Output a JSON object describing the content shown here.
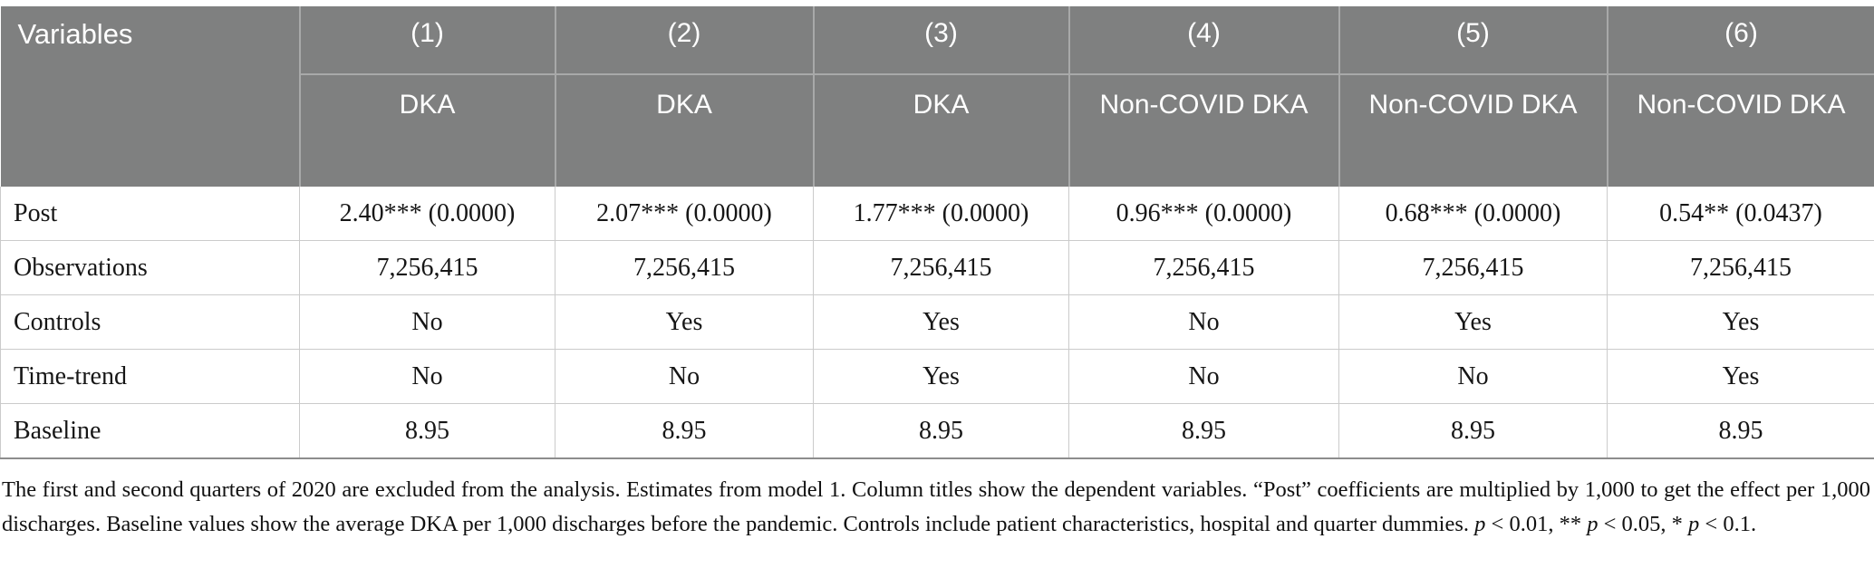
{
  "table": {
    "header": {
      "variables_label": "Variables",
      "columns": [
        {
          "number": "(1)",
          "dep_var": "DKA"
        },
        {
          "number": "(2)",
          "dep_var": "DKA"
        },
        {
          "number": "(3)",
          "dep_var": "DKA"
        },
        {
          "number": "(4)",
          "dep_var": "Non-COVID DKA"
        },
        {
          "number": "(5)",
          "dep_var": "Non-COVID DKA"
        },
        {
          "number": "(6)",
          "dep_var": "Non-COVID DKA"
        }
      ]
    },
    "rows": [
      {
        "label": "Post",
        "values": [
          "2.40*** (0.0000)",
          "2.07*** (0.0000)",
          "1.77*** (0.0000)",
          "0.96*** (0.0000)",
          "0.68*** (0.0000)",
          "0.54** (0.0437)"
        ]
      },
      {
        "label": "Observations",
        "values": [
          "7,256,415",
          "7,256,415",
          "7,256,415",
          "7,256,415",
          "7,256,415",
          "7,256,415"
        ]
      },
      {
        "label": "Controls",
        "values": [
          "No",
          "Yes",
          "Yes",
          "No",
          "Yes",
          "Yes"
        ]
      },
      {
        "label": "Time-trend",
        "values": [
          "No",
          "No",
          "Yes",
          "No",
          "No",
          "Yes"
        ]
      },
      {
        "label": "Baseline",
        "values": [
          "8.95",
          "8.95",
          "8.95",
          "8.95",
          "8.95",
          "8.95"
        ]
      }
    ],
    "colors": {
      "header_bg": "#7f8080",
      "header_divider": "#a8a9a9",
      "header_text": "#ffffff",
      "body_grid_line": "#cbcbcb",
      "table_bottom_border": "#8d8d8d",
      "body_text": "#161616"
    }
  },
  "footnote": {
    "segments": [
      {
        "text": "The first and second quarters of 2020 are excluded from the analysis. Estimates from model 1. Column titles show the dependent variables. “Post” coefficients are multiplied by 1,000 to get the effect per 1,000 discharges. Baseline values show the average DKA per 1,000 discharges before the pandemic. Controls include patient characteristics, hospital and quarter dummies. ",
        "italic": false
      },
      {
        "text": "p",
        "italic": true
      },
      {
        "text": " < 0.01, ** ",
        "italic": false
      },
      {
        "text": "p",
        "italic": true
      },
      {
        "text": " < 0.05, * ",
        "italic": false
      },
      {
        "text": "p",
        "italic": true
      },
      {
        "text": " < 0.1.",
        "italic": false
      }
    ]
  }
}
